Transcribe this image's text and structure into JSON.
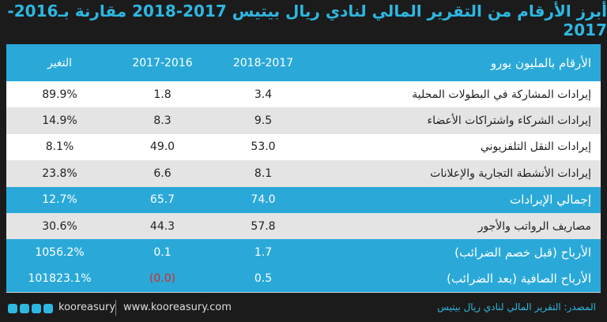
{
  "header": {
    "title": "أبرز الأرقام من التقرير المالي لنادي ريال بيتيس 2017-2018 مقارنة بـ2016-2017"
  },
  "table": {
    "columns": [
      "الأرقام بالمليون يورو",
      "2018-2017",
      "2017-2016",
      "التغير"
    ],
    "rows": [
      [
        "إيرادات المشاركة في البطولات المحلية",
        "3.4",
        "1.8",
        "89.9%"
      ],
      [
        "إيرادات الشركاء واشتراكات الأعضاء",
        "9.5",
        "8.3",
        "14.9%"
      ],
      [
        "إيرادات النقل التلفزيوني",
        "53.0",
        "49.0",
        "8.1%"
      ],
      [
        "إيرادات الأنشطة التجارية والإعلانات",
        "8.1",
        "6.6",
        "23.8%"
      ],
      [
        "إجمالي الإيرادات",
        "74.0",
        "65.7",
        "12.7%"
      ],
      [
        "مصاريف الرواتب والأجور",
        "57.8",
        "44.3",
        "30.6%"
      ],
      [
        "الأرباح (قبل خصم الضرائب)",
        "1.7",
        "0.1",
        "1056.2%"
      ],
      [
        "الأرباح الصافية (بعد الضرائب)",
        "0.5",
        "(0.0)",
        "101823.1%"
      ]
    ],
    "highlight_rows": [
      4,
      6,
      7
    ],
    "highlight_color": "#2aa9d9",
    "negative_color": "#e3241b"
  },
  "footer": {
    "handle": "kooreasury",
    "site": "www.kooreasury.com",
    "source": "المصدر: التقرير المالي لنادي ريال بيتيس"
  }
}
